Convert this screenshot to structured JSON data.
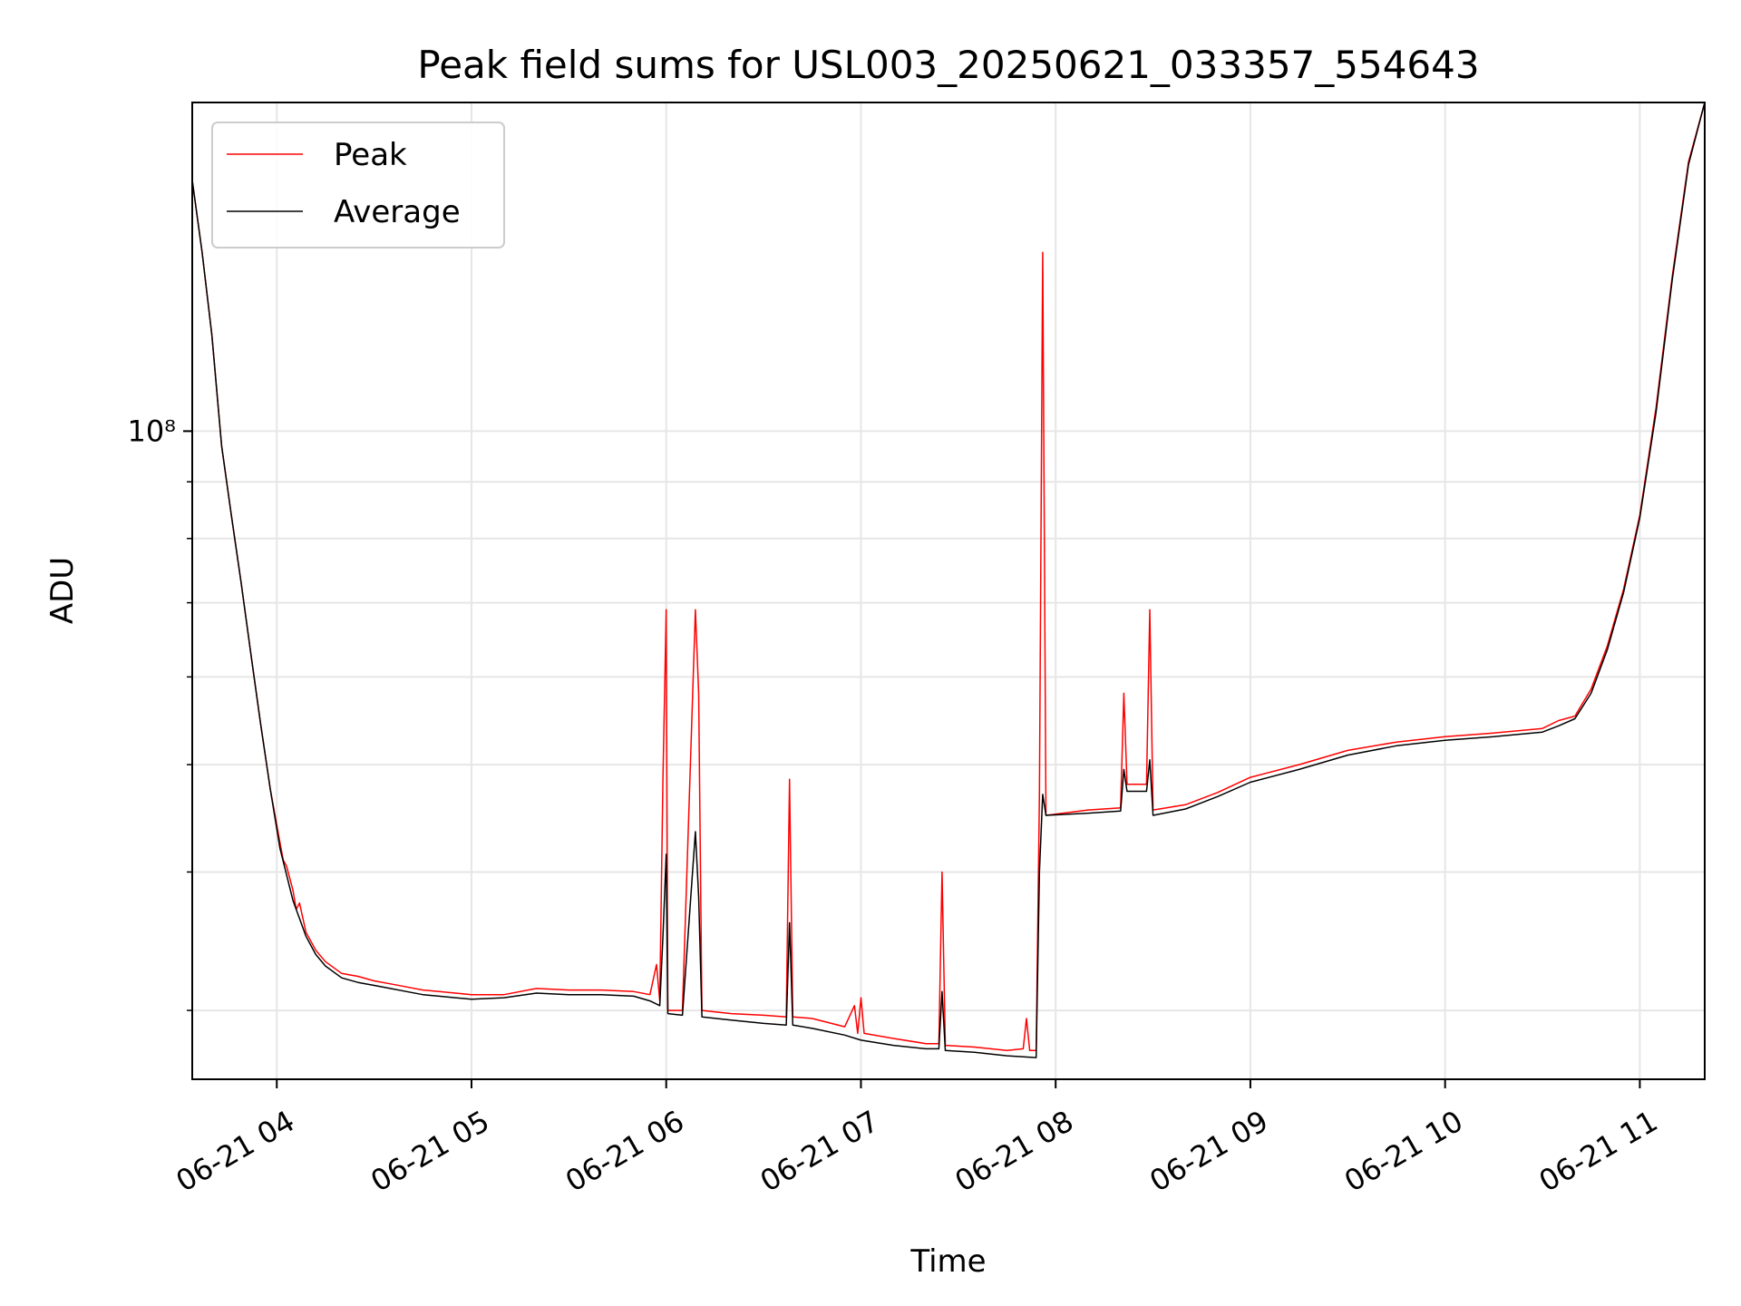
{
  "chart_data": {
    "type": "line",
    "title": "Peak field sums for USL003_20250621_033357_554643",
    "xlabel": "Time",
    "ylabel": "ADU",
    "y_scale": "log",
    "ylim": [
      26000000,
      198000000
    ],
    "y_tick_labels": [
      {
        "value": 100000000,
        "label": "10⁸"
      }
    ],
    "xlim": [
      "2025-06-21T03:33:57",
      "2025-06-21T11:20:00"
    ],
    "x_tick_labels": [
      {
        "value": "2025-06-21T04:00",
        "label": "06-21 04"
      },
      {
        "value": "2025-06-21T05:00",
        "label": "06-21 05"
      },
      {
        "value": "2025-06-21T06:00",
        "label": "06-21 06"
      },
      {
        "value": "2025-06-21T07:00",
        "label": "06-21 07"
      },
      {
        "value": "2025-06-21T08:00",
        "label": "06-21 08"
      },
      {
        "value": "2025-06-21T09:00",
        "label": "06-21 09"
      },
      {
        "value": "2025-06-21T10:00",
        "label": "06-21 10"
      },
      {
        "value": "2025-06-21T11:00",
        "label": "06-21 11"
      }
    ],
    "grid": true,
    "legend_position": "top-left",
    "series": [
      {
        "name": "Peak",
        "color": "#ff0000",
        "points": [
          [
            "2025-06-21T03:34",
            168000000
          ],
          [
            "2025-06-21T03:37",
            145000000
          ],
          [
            "2025-06-21T03:40",
            122000000
          ],
          [
            "2025-06-21T03:43",
            97000000
          ],
          [
            "2025-06-21T03:46",
            84000000
          ],
          [
            "2025-06-21T03:49",
            73000000
          ],
          [
            "2025-06-21T03:52",
            63000000
          ],
          [
            "2025-06-21T03:55",
            54500000
          ],
          [
            "2025-06-21T03:58",
            47500000
          ],
          [
            "2025-06-21T04:01",
            42500000
          ],
          [
            "2025-06-21T04:02",
            41000000
          ],
          [
            "2025-06-21T04:03",
            40500000
          ],
          [
            "2025-06-21T04:05",
            38500000
          ],
          [
            "2025-06-21T04:06",
            37000000
          ],
          [
            "2025-06-21T04:07",
            37500000
          ],
          [
            "2025-06-21T04:09",
            35300000
          ],
          [
            "2025-06-21T04:12",
            34000000
          ],
          [
            "2025-06-21T04:15",
            33200000
          ],
          [
            "2025-06-21T04:20",
            32400000
          ],
          [
            "2025-06-21T04:25",
            32200000
          ],
          [
            "2025-06-21T04:30",
            31900000
          ],
          [
            "2025-06-21T04:35",
            31700000
          ],
          [
            "2025-06-21T04:40",
            31500000
          ],
          [
            "2025-06-21T04:45",
            31300000
          ],
          [
            "2025-06-21T04:50",
            31200000
          ],
          [
            "2025-06-21T04:55",
            31100000
          ],
          [
            "2025-06-21T05:00",
            31000000
          ],
          [
            "2025-06-21T05:10",
            31000000
          ],
          [
            "2025-06-21T05:20",
            31400000
          ],
          [
            "2025-06-21T05:30",
            31300000
          ],
          [
            "2025-06-21T05:40",
            31300000
          ],
          [
            "2025-06-21T05:50",
            31200000
          ],
          [
            "2025-06-21T05:55",
            31000000
          ],
          [
            "2025-06-21T05:57",
            33000000
          ],
          [
            "2025-06-21T05:58",
            30600000
          ],
          [
            "2025-06-21T05:59",
            48500000
          ],
          [
            "2025-06-21T06:00",
            69000000
          ],
          [
            "2025-06-21T06:00:30",
            30000000
          ],
          [
            "2025-06-21T06:05",
            30000000
          ],
          [
            "2025-06-21T06:09",
            69000000
          ],
          [
            "2025-06-21T06:10",
            58000000
          ],
          [
            "2025-06-21T06:11",
            30000000
          ],
          [
            "2025-06-21T06:20",
            29800000
          ],
          [
            "2025-06-21T06:30",
            29700000
          ],
          [
            "2025-06-21T06:37",
            29600000
          ],
          [
            "2025-06-21T06:38",
            48500000
          ],
          [
            "2025-06-21T06:39",
            29600000
          ],
          [
            "2025-06-21T06:45",
            29500000
          ],
          [
            "2025-06-21T06:55",
            29000000
          ],
          [
            "2025-06-21T06:58",
            30300000
          ],
          [
            "2025-06-21T06:59",
            28600000
          ],
          [
            "2025-06-21T07:00",
            30800000
          ],
          [
            "2025-06-21T07:01",
            28600000
          ],
          [
            "2025-06-21T07:10",
            28300000
          ],
          [
            "2025-06-21T07:20",
            28000000
          ],
          [
            "2025-06-21T07:24",
            28000000
          ],
          [
            "2025-06-21T07:25",
            40000000
          ],
          [
            "2025-06-21T07:26",
            27900000
          ],
          [
            "2025-06-21T07:35",
            27800000
          ],
          [
            "2025-06-21T07:45",
            27600000
          ],
          [
            "2025-06-21T07:50",
            27700000
          ],
          [
            "2025-06-21T07:51",
            29500000
          ],
          [
            "2025-06-21T07:52",
            27600000
          ],
          [
            "2025-06-21T07:54",
            27600000
          ],
          [
            "2025-06-21T07:55",
            47000000
          ],
          [
            "2025-06-21T07:56",
            145000000
          ],
          [
            "2025-06-21T07:57",
            45000000
          ],
          [
            "2025-06-21T08:10",
            45500000
          ],
          [
            "2025-06-21T08:20",
            45700000
          ],
          [
            "2025-06-21T08:21",
            58000000
          ],
          [
            "2025-06-21T08:22",
            48000000
          ],
          [
            "2025-06-21T08:28",
            48000000
          ],
          [
            "2025-06-21T08:29",
            69000000
          ],
          [
            "2025-06-21T08:30",
            45500000
          ],
          [
            "2025-06-21T08:40",
            46000000
          ],
          [
            "2025-06-21T08:50",
            47200000
          ],
          [
            "2025-06-21T09:00",
            48700000
          ],
          [
            "2025-06-21T09:15",
            50000000
          ],
          [
            "2025-06-21T09:30",
            51500000
          ],
          [
            "2025-06-21T09:45",
            52400000
          ],
          [
            "2025-06-21T10:00",
            53000000
          ],
          [
            "2025-06-21T10:15",
            53400000
          ],
          [
            "2025-06-21T10:30",
            53900000
          ],
          [
            "2025-06-21T10:35",
            54800000
          ],
          [
            "2025-06-21T10:40",
            55300000
          ],
          [
            "2025-06-21T10:45",
            58500000
          ],
          [
            "2025-06-21T10:50",
            64000000
          ],
          [
            "2025-06-21T10:55",
            72000000
          ],
          [
            "2025-06-21T11:00",
            84000000
          ],
          [
            "2025-06-21T11:05",
            105000000
          ],
          [
            "2025-06-21T11:10",
            138000000
          ],
          [
            "2025-06-21T11:15",
            175000000
          ],
          [
            "2025-06-21T11:20",
            198000000
          ]
        ]
      },
      {
        "name": "Average",
        "color": "#000000",
        "points": [
          [
            "2025-06-21T03:34",
            168000000
          ],
          [
            "2025-06-21T03:37",
            145000000
          ],
          [
            "2025-06-21T03:40",
            122000000
          ],
          [
            "2025-06-21T03:43",
            97000000
          ],
          [
            "2025-06-21T03:46",
            84000000
          ],
          [
            "2025-06-21T03:49",
            73000000
          ],
          [
            "2025-06-21T03:52",
            63000000
          ],
          [
            "2025-06-21T03:55",
            54500000
          ],
          [
            "2025-06-21T03:58",
            47500000
          ],
          [
            "2025-06-21T04:01",
            42000000
          ],
          [
            "2025-06-21T04:05",
            37700000
          ],
          [
            "2025-06-21T04:09",
            35000000
          ],
          [
            "2025-06-21T04:12",
            33700000
          ],
          [
            "2025-06-21T04:15",
            32900000
          ],
          [
            "2025-06-21T04:20",
            32100000
          ],
          [
            "2025-06-21T04:25",
            31800000
          ],
          [
            "2025-06-21T04:30",
            31600000
          ],
          [
            "2025-06-21T04:35",
            31400000
          ],
          [
            "2025-06-21T04:40",
            31200000
          ],
          [
            "2025-06-21T04:45",
            31000000
          ],
          [
            "2025-06-21T04:50",
            30900000
          ],
          [
            "2025-06-21T04:55",
            30800000
          ],
          [
            "2025-06-21T05:00",
            30700000
          ],
          [
            "2025-06-21T05:10",
            30800000
          ],
          [
            "2025-06-21T05:20",
            31100000
          ],
          [
            "2025-06-21T05:30",
            31000000
          ],
          [
            "2025-06-21T05:40",
            31000000
          ],
          [
            "2025-06-21T05:50",
            30900000
          ],
          [
            "2025-06-21T05:55",
            30600000
          ],
          [
            "2025-06-21T05:58",
            30300000
          ],
          [
            "2025-06-21T05:59",
            35000000
          ],
          [
            "2025-06-21T06:00",
            41500000
          ],
          [
            "2025-06-21T06:00:30",
            29800000
          ],
          [
            "2025-06-21T06:05",
            29700000
          ],
          [
            "2025-06-21T06:09",
            43500000
          ],
          [
            "2025-06-21T06:10",
            38000000
          ],
          [
            "2025-06-21T06:11",
            29600000
          ],
          [
            "2025-06-21T06:20",
            29400000
          ],
          [
            "2025-06-21T06:30",
            29200000
          ],
          [
            "2025-06-21T06:37",
            29100000
          ],
          [
            "2025-06-21T06:38",
            36000000
          ],
          [
            "2025-06-21T06:39",
            29100000
          ],
          [
            "2025-06-21T06:45",
            28900000
          ],
          [
            "2025-06-21T06:55",
            28500000
          ],
          [
            "2025-06-21T07:00",
            28200000
          ],
          [
            "2025-06-21T07:10",
            27900000
          ],
          [
            "2025-06-21T07:20",
            27700000
          ],
          [
            "2025-06-21T07:24",
            27700000
          ],
          [
            "2025-06-21T07:25",
            31200000
          ],
          [
            "2025-06-21T07:26",
            27600000
          ],
          [
            "2025-06-21T07:35",
            27500000
          ],
          [
            "2025-06-21T07:45",
            27300000
          ],
          [
            "2025-06-21T07:54",
            27200000
          ],
          [
            "2025-06-21T07:55",
            40000000
          ],
          [
            "2025-06-21T07:56",
            47000000
          ],
          [
            "2025-06-21T07:57",
            45000000
          ],
          [
            "2025-06-21T08:10",
            45200000
          ],
          [
            "2025-06-21T08:20",
            45400000
          ],
          [
            "2025-06-21T08:21",
            49500000
          ],
          [
            "2025-06-21T08:22",
            47300000
          ],
          [
            "2025-06-21T08:28",
            47300000
          ],
          [
            "2025-06-21T08:29",
            50500000
          ],
          [
            "2025-06-21T08:30",
            45000000
          ],
          [
            "2025-06-21T08:40",
            45600000
          ],
          [
            "2025-06-21T08:50",
            46800000
          ],
          [
            "2025-06-21T09:00",
            48200000
          ],
          [
            "2025-06-21T09:15",
            49500000
          ],
          [
            "2025-06-21T09:30",
            51000000
          ],
          [
            "2025-06-21T09:45",
            52000000
          ],
          [
            "2025-06-21T10:00",
            52600000
          ],
          [
            "2025-06-21T10:15",
            53000000
          ],
          [
            "2025-06-21T10:30",
            53500000
          ],
          [
            "2025-06-21T10:35",
            54200000
          ],
          [
            "2025-06-21T10:40",
            55000000
          ],
          [
            "2025-06-21T10:45",
            58000000
          ],
          [
            "2025-06-21T10:50",
            63500000
          ],
          [
            "2025-06-21T10:55",
            71500000
          ],
          [
            "2025-06-21T11:00",
            83500000
          ],
          [
            "2025-06-21T11:05",
            104000000
          ],
          [
            "2025-06-21T11:10",
            137000000
          ],
          [
            "2025-06-21T11:15",
            174000000
          ],
          [
            "2025-06-21T11:20",
            198000000
          ]
        ]
      }
    ]
  }
}
